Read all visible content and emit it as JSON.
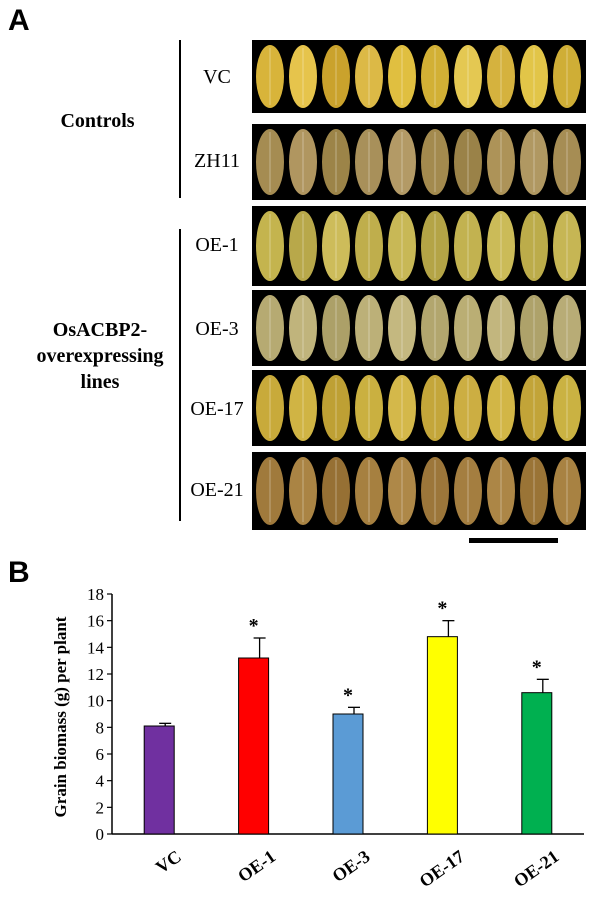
{
  "panel_a": {
    "letter": "A",
    "group_controls": "Controls",
    "group_oe": [
      "OsACBP2-",
      "overexpressing",
      "lines"
    ],
    "rows": [
      "VC",
      "ZH11",
      "OE-1",
      "OE-3",
      "OE-17",
      "OE-21"
    ]
  },
  "panel_b": {
    "letter": "B"
  },
  "chart_data": {
    "type": "bar",
    "categories": [
      "VC",
      "OE-1",
      "OE-3",
      "OE-17",
      "OE-21"
    ],
    "values": [
      8.1,
      13.2,
      9.0,
      14.8,
      10.6
    ],
    "errors": [
      0.2,
      1.5,
      0.5,
      1.2,
      1.0
    ],
    "significance": [
      "",
      "*",
      "*",
      "*",
      "*"
    ],
    "colors": [
      "#7030A0",
      "#FF0000",
      "#5B9BD5",
      "#FFFF00",
      "#00B050"
    ],
    "ylabel": "Grain biomass (g) per plant",
    "xlabel": "",
    "ylim": [
      0,
      18
    ],
    "yticks": [
      0,
      2,
      4,
      6,
      8,
      10,
      12,
      14,
      16,
      18
    ]
  }
}
